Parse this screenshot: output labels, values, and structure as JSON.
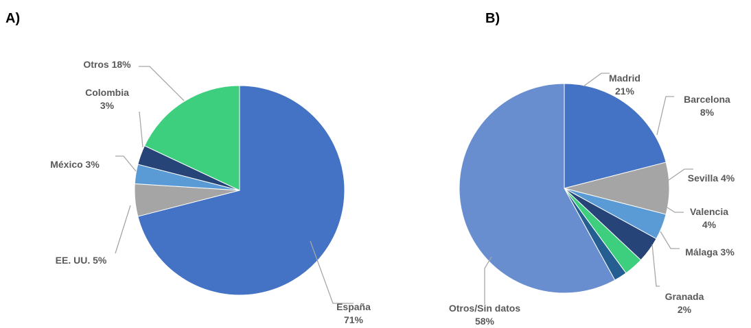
{
  "chart_data": [
    {
      "type": "pie",
      "panel_label": "A)",
      "title": "",
      "slices": [
        {
          "label": "España",
          "value_label": "71%",
          "value": 71,
          "color": "#4472C4"
        },
        {
          "label": "EE. UU.",
          "value_label": "5%",
          "value": 5,
          "color": "#A5A5A5"
        },
        {
          "label": "México",
          "value_label": "3%",
          "value": 3,
          "color": "#5B9BD5"
        },
        {
          "label": "Colombia",
          "value_label": "3%",
          "value": 3,
          "color": "#264478"
        },
        {
          "label": "Otros",
          "value_label": "18%",
          "value": 18,
          "color": "#3ECF7E"
        }
      ]
    },
    {
      "type": "pie",
      "panel_label": "B)",
      "title": "",
      "slices": [
        {
          "label": "Madrid",
          "value_label": "21%",
          "value": 21,
          "color": "#4472C4"
        },
        {
          "label": "Barcelona",
          "value_label": "8%",
          "value": 8,
          "color": "#A5A5A5"
        },
        {
          "label": "Sevilla",
          "value_label": "4%",
          "value": 4,
          "color": "#5B9BD5"
        },
        {
          "label": "Valencia",
          "value_label": "4%",
          "value": 4,
          "color": "#264478"
        },
        {
          "label": "Málaga",
          "value_label": "3%",
          "value": 3,
          "color": "#3ECF7E"
        },
        {
          "label": "Granada",
          "value_label": "2%",
          "value": 2,
          "color": "#255E91"
        },
        {
          "label": "Otros/Sin datos",
          "value_label": "58%",
          "value": 58,
          "color": "#698ED0"
        }
      ]
    }
  ]
}
